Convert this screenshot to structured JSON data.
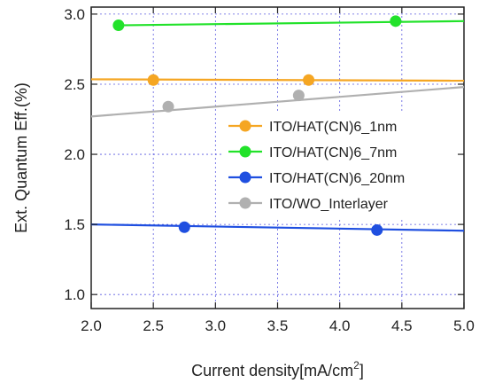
{
  "chart_data": {
    "type": "line",
    "title": "",
    "xlabel": "Current density[mA/cm",
    "xlabel_sup": "2",
    "xlabel_end": "]",
    "ylabel": "Ext. Quantum Eff.(%)",
    "xlim": [
      2.0,
      5.0
    ],
    "ylim": [
      0.9,
      3.05
    ],
    "x_ticks": [
      2.0,
      2.5,
      3.0,
      3.5,
      4.0,
      4.5,
      5.0
    ],
    "y_ticks": [
      1.0,
      1.5,
      2.0,
      2.5,
      3.0
    ],
    "x_tick_labels": [
      "2.0",
      "2.5",
      "3.0",
      "3.5",
      "4.0",
      "4.5",
      "5.0"
    ],
    "y_tick_labels": [
      "1.0",
      "1.5",
      "2.0",
      "2.5",
      "3.0"
    ],
    "grid": true,
    "legend_position": "center-right",
    "series": [
      {
        "name": "ITO/HAT(CN)6_1nm",
        "color": "#f5a623",
        "line": [
          [
            2.0,
            2.535
          ],
          [
            5.0,
            2.525
          ]
        ],
        "markers": [
          [
            2.5,
            2.53
          ],
          [
            3.75,
            2.53
          ]
        ]
      },
      {
        "name": "ITO/HAT(CN)6_7nm",
        "color": "#22e22a",
        "line": [
          [
            2.22,
            2.92
          ],
          [
            5.0,
            2.95
          ]
        ],
        "markers": [
          [
            2.22,
            2.92
          ],
          [
            4.45,
            2.95
          ]
        ]
      },
      {
        "name": "ITO/HAT(CN)6_20nm",
        "color": "#1f4fe0",
        "line": [
          [
            2.0,
            1.5
          ],
          [
            5.0,
            1.455
          ]
        ],
        "markers": [
          [
            2.75,
            1.48
          ],
          [
            4.3,
            1.46
          ]
        ]
      },
      {
        "name": "ITO/WO_Interlayer",
        "color": "#b0b0b0",
        "line": [
          [
            2.0,
            2.27
          ],
          [
            5.0,
            2.48
          ]
        ],
        "markers": [
          [
            2.62,
            2.34
          ],
          [
            3.67,
            2.42
          ]
        ]
      }
    ]
  }
}
